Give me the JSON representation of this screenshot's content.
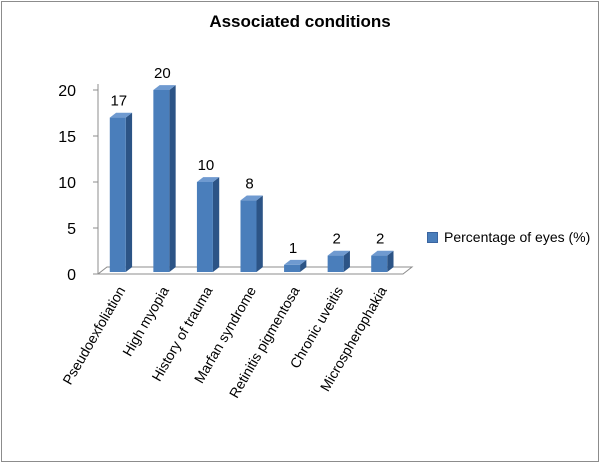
{
  "chart_data": {
    "type": "bar",
    "title": "Associated conditions",
    "categories": [
      "Pseudoexfoliation",
      "High myopia",
      "History of trauma",
      "Marfan syndrome",
      "Retinitis pigmentosa",
      "Chronic uveitis",
      "Microspherophakia"
    ],
    "series": [
      {
        "name": "Percentage of eyes (%)",
        "values": [
          17,
          20,
          10,
          8,
          1,
          2,
          2
        ]
      }
    ],
    "ylim": [
      0,
      20
    ],
    "yticks": [
      "0",
      "5",
      "10",
      "15",
      "20"
    ],
    "data_labels": [
      "17",
      "20",
      "10",
      "8",
      "1",
      "2",
      "2"
    ],
    "legend_position": "right",
    "grid": false,
    "three_d": true,
    "colors": {
      "front": "#4a7ebb",
      "side": "#2c5486",
      "top": "#6f9ad0"
    }
  }
}
